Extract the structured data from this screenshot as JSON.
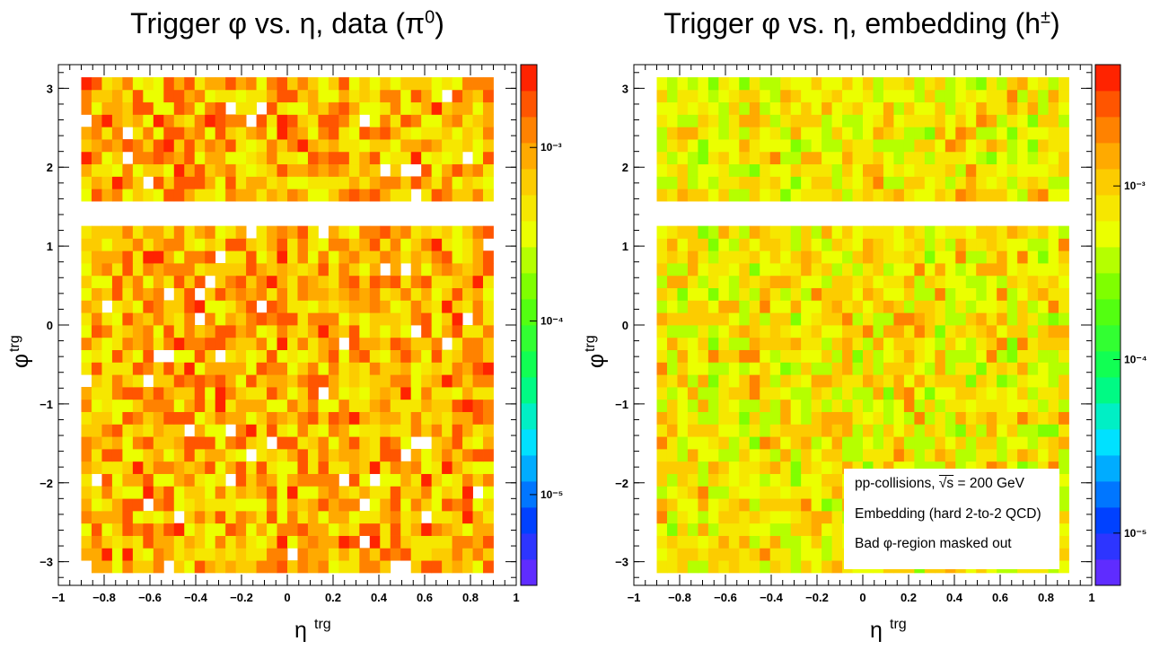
{
  "chart_data": [
    {
      "type": "heatmap",
      "title_main": "Trigger φ vs. η, data (π",
      "title_sup": "0",
      "title_end": ")",
      "xlabel": "η",
      "xlabel_sup": "trg",
      "ylabel": "φ",
      "ylabel_sup": "trg",
      "xlim": [
        -1,
        1
      ],
      "ylim": [
        -3.3,
        3.3
      ],
      "x_ticks": [
        "−1",
        "−0.8",
        "−0.6",
        "−0.4",
        "−0.2",
        "0",
        "0.2",
        "0.4",
        "0.6",
        "0.8",
        "1"
      ],
      "y_ticks": [
        "−3",
        "−2",
        "−1",
        "0",
        "1",
        "2",
        "3"
      ],
      "zscale": "log",
      "zlim": [
        3e-06,
        0.003
      ],
      "z_ticks": [
        "10⁻³",
        "10⁻⁴",
        "10⁻⁵"
      ],
      "z_tick_values": [
        0.001,
        0.0001,
        1e-05
      ],
      "binning": {
        "x_bins": 40,
        "x_range": [
          -0.9,
          0.9
        ],
        "y_bins": 40,
        "y_range": [
          -3.14,
          3.14
        ]
      },
      "masked_phi_range": [
        1.26,
        1.57
      ],
      "typical_value_range": [
        0.0003,
        0.002
      ],
      "dominant_colors": [
        "#ff7a00",
        "#ff4000",
        "#ffd000"
      ]
    },
    {
      "type": "heatmap",
      "title_main": "Trigger φ vs. η, embedding (h",
      "title_sup": "±",
      "title_end": ")",
      "xlabel": "η",
      "xlabel_sup": "trg",
      "ylabel": "φ",
      "ylabel_sup": "trg",
      "xlim": [
        -1,
        1
      ],
      "ylim": [
        -3.3,
        3.3
      ],
      "x_ticks": [
        "−1",
        "−0.8",
        "−0.6",
        "−0.4",
        "−0.2",
        "0",
        "0.2",
        "0.4",
        "0.6",
        "0.8",
        "1"
      ],
      "y_ticks": [
        "−3",
        "−2",
        "−1",
        "0",
        "1",
        "2",
        "3"
      ],
      "zscale": "log",
      "zlim": [
        5e-06,
        0.005
      ],
      "z_ticks": [
        "10⁻³",
        "10⁻⁴",
        "10⁻⁵"
      ],
      "z_tick_values": [
        0.001,
        0.0001,
        1e-05
      ],
      "binning": {
        "x_bins": 40,
        "x_range": [
          -0.9,
          0.9
        ],
        "y_bins": 40,
        "y_range": [
          -3.14,
          3.14
        ]
      },
      "masked_phi_range": [
        1.26,
        1.57
      ],
      "typical_value_range": [
        0.0003,
        0.0015
      ],
      "dominant_colors": [
        "#ffee00",
        "#c8ff00",
        "#ffb000"
      ],
      "annotations": {
        "line1_prefix": "pp-collisions, ",
        "line1_sqrt": "√s",
        "line1_suffix": " = 200 GeV",
        "line2": "Embedding (hard 2-to-2 QCD)",
        "line3": "Bad φ-region masked out"
      }
    }
  ]
}
